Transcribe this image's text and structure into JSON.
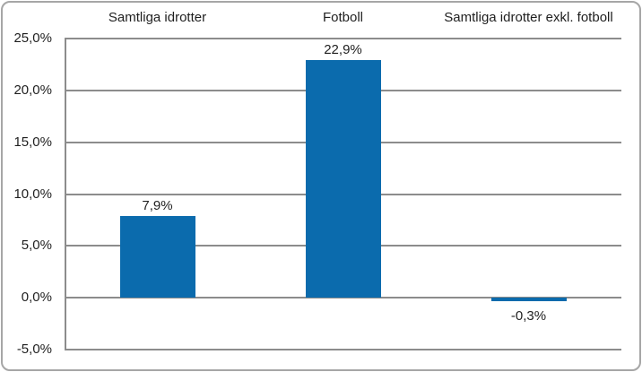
{
  "colors": {
    "bar": "#0B6BAD",
    "gridline": "#8C8C8C",
    "axis_line": "#8C8C8C",
    "frame_border": "#A6A6A6",
    "text": "#1F1F1F",
    "background": "#FFFFFF"
  },
  "chart_data": {
    "type": "bar",
    "categories": [
      "Samtliga idrotter",
      "Fotboll",
      "Samtliga idrotter exkl. fotboll"
    ],
    "values": [
      7.9,
      22.9,
      -0.3
    ],
    "value_labels": [
      "7,9%",
      "22,9%",
      "-0,3%"
    ],
    "yticks": [
      25,
      20,
      15,
      10,
      5,
      0,
      -5
    ],
    "ytick_labels": [
      "25,0%",
      "20,0%",
      "15,0%",
      "10,0%",
      "5,0%",
      "0,0%",
      "-5,0%"
    ],
    "ylim": [
      -5,
      25
    ],
    "grid": true,
    "legend_position": "none",
    "category_label_position": "top",
    "bar_color": "#0B6BAD"
  }
}
